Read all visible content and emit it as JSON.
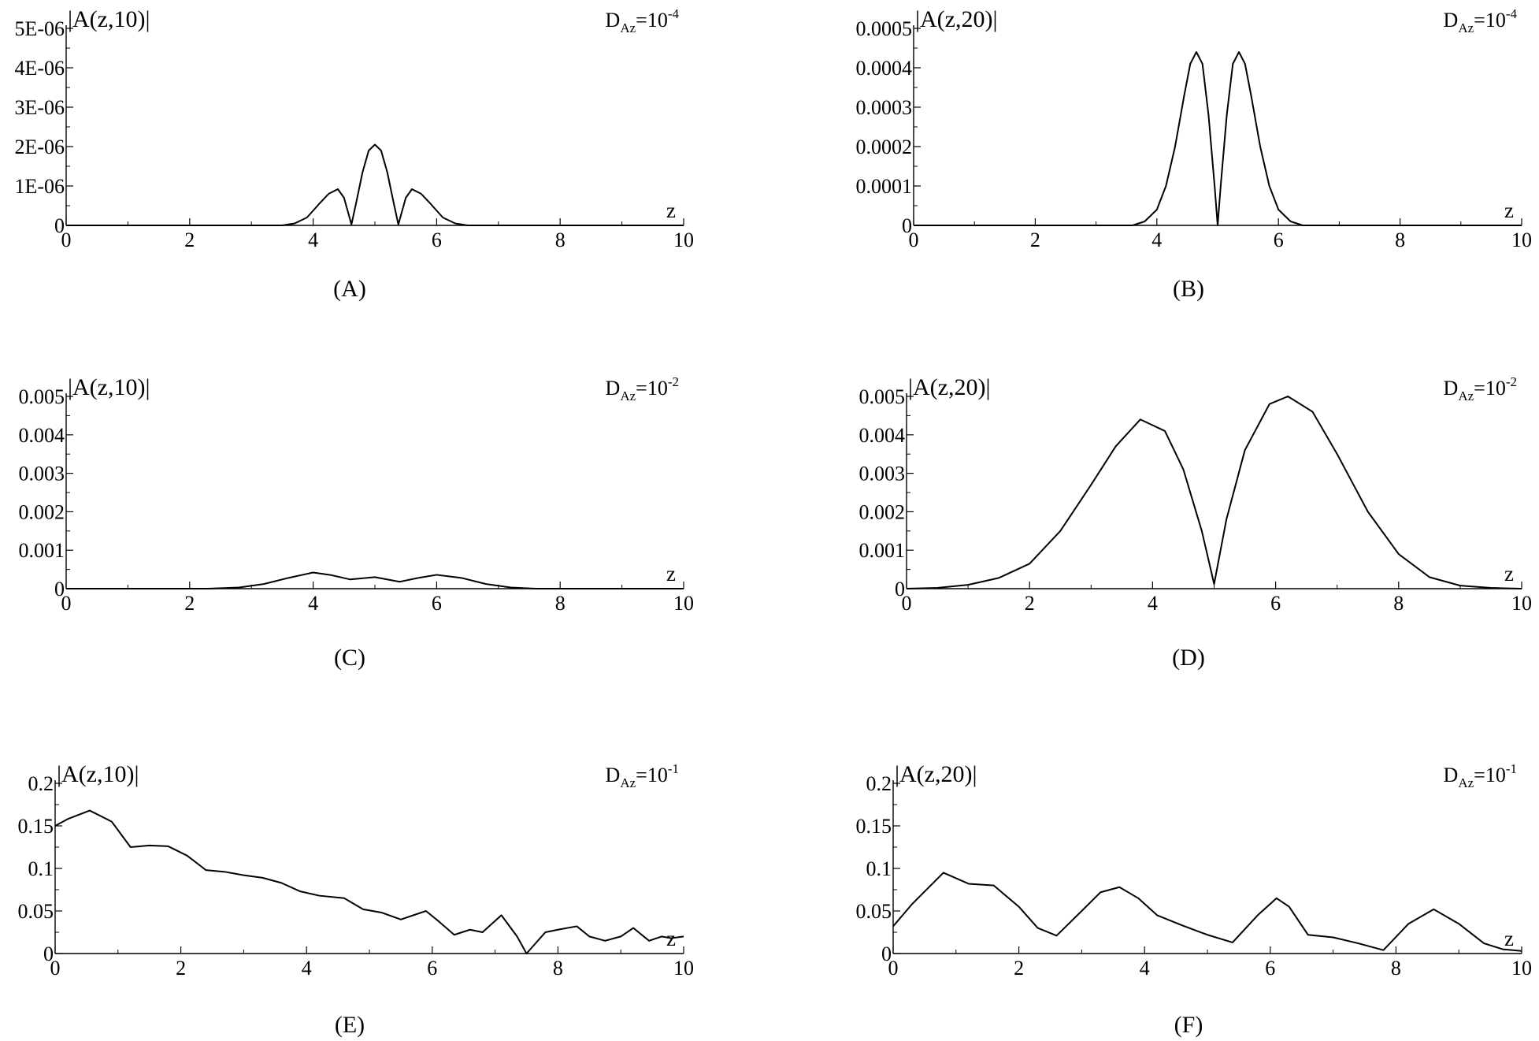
{
  "chart_data": [
    {
      "type": "line",
      "panel": "(A)",
      "ylabel": "|A(z,10)|",
      "xlabel": "z",
      "param": {
        "base": "D",
        "sub": "Az",
        "eq": "=10",
        "sup": "-4"
      },
      "xlim": [
        0,
        10
      ],
      "ylim": [
        0,
        5e-06
      ],
      "xticks": [
        "0",
        "2",
        "4",
        "6",
        "8",
        "10"
      ],
      "yticks": [
        "0",
        "1E-06",
        "2E-06",
        "3E-06",
        "4E-06",
        "5E-06"
      ],
      "series": [
        {
          "x": [
            0,
            3.5,
            3.7,
            3.9,
            4.1,
            4.25,
            4.4,
            4.5,
            4.58,
            4.62,
            4.7,
            4.8,
            4.9,
            5.0,
            5.1,
            5.2,
            5.3,
            5.38,
            5.42,
            5.5,
            5.6,
            5.75,
            5.9,
            6.1,
            6.3,
            6.5,
            10
          ],
          "y": [
            0,
            0,
            5e-08,
            2e-07,
            5.5e-07,
            8e-07,
            9.2e-07,
            7e-07,
            2.5e-07,
            2e-08,
            6e-07,
            1.35e-06,
            1.9e-06,
            2.05e-06,
            1.9e-06,
            1.35e-06,
            6e-07,
            2e-08,
            2.5e-07,
            7e-07,
            9.2e-07,
            8e-07,
            5.5e-07,
            2e-07,
            5e-08,
            0,
            0
          ]
        }
      ]
    },
    {
      "type": "line",
      "panel": "(B)",
      "ylabel": "|A(z,20)|",
      "xlabel": "z",
      "param": {
        "base": "D",
        "sub": "Az",
        "eq": "=10",
        "sup": "-4"
      },
      "xlim": [
        0,
        10
      ],
      "ylim": [
        0,
        0.0005
      ],
      "xticks": [
        "0",
        "2",
        "4",
        "6",
        "8",
        "10"
      ],
      "yticks": [
        "0",
        "0.0001",
        "0.0002",
        "0.0003",
        "0.0004",
        "0.0005"
      ],
      "series": [
        {
          "x": [
            0,
            3.6,
            3.8,
            4.0,
            4.15,
            4.3,
            4.45,
            4.55,
            4.65,
            4.75,
            4.85,
            4.95,
            5.0,
            5.05,
            5.15,
            5.25,
            5.35,
            5.45,
            5.55,
            5.7,
            5.85,
            6.0,
            6.2,
            6.4,
            10
          ],
          "y": [
            0,
            0,
            1e-05,
            4e-05,
            0.0001,
            0.0002,
            0.00033,
            0.00041,
            0.00044,
            0.00041,
            0.00028,
            0.0001,
            0,
            0.0001,
            0.00028,
            0.00041,
            0.00044,
            0.00041,
            0.00033,
            0.0002,
            0.0001,
            4e-05,
            1e-05,
            0,
            0
          ]
        }
      ]
    },
    {
      "type": "line",
      "panel": "(C)",
      "ylabel": "|A(z,10)|",
      "xlabel": "z",
      "param": {
        "base": "D",
        "sub": "Az",
        "eq": "=10",
        "sup": "-2"
      },
      "xlim": [
        0,
        10
      ],
      "ylim": [
        0,
        0.005
      ],
      "xticks": [
        "0",
        "2",
        "4",
        "6",
        "8",
        "10"
      ],
      "yticks": [
        "0",
        "0.001",
        "0.002",
        "0.003",
        "0.004",
        "0.005"
      ],
      "series": [
        {
          "x": [
            0,
            2.3,
            2.8,
            3.2,
            3.6,
            4.0,
            4.3,
            4.6,
            5.0,
            5.4,
            5.7,
            6.0,
            6.4,
            6.8,
            7.2,
            7.6,
            10
          ],
          "y": [
            0,
            0,
            3e-05,
            0.00012,
            0.00028,
            0.00042,
            0.00035,
            0.00024,
            0.0003,
            0.00018,
            0.00028,
            0.00036,
            0.00028,
            0.00012,
            3e-05,
            0,
            0
          ]
        }
      ]
    },
    {
      "type": "line",
      "panel": "(D)",
      "ylabel": "|A(z,20)|",
      "xlabel": "z",
      "param": {
        "base": "D",
        "sub": "Az",
        "eq": "=10",
        "sup": "-2"
      },
      "xlim": [
        0,
        10
      ],
      "ylim": [
        0,
        0.005
      ],
      "xticks": [
        "0",
        "2",
        "4",
        "6",
        "8",
        "10"
      ],
      "yticks": [
        "0",
        "0.001",
        "0.002",
        "0.003",
        "0.004",
        "0.005"
      ],
      "series": [
        {
          "x": [
            0,
            0.5,
            1.0,
            1.5,
            2.0,
            2.5,
            3.0,
            3.4,
            3.8,
            4.2,
            4.5,
            4.8,
            5.0,
            5.2,
            5.5,
            5.9,
            6.2,
            6.6,
            7.0,
            7.5,
            8.0,
            8.5,
            9.0,
            9.5,
            10
          ],
          "y": [
            0,
            2e-05,
            0.0001,
            0.00028,
            0.00065,
            0.0015,
            0.0027,
            0.0037,
            0.0044,
            0.0041,
            0.0031,
            0.0015,
            0.00012,
            0.0018,
            0.0036,
            0.0048,
            0.005,
            0.0046,
            0.0035,
            0.002,
            0.0009,
            0.0003,
            8e-05,
            2e-05,
            0
          ]
        }
      ]
    },
    {
      "type": "line",
      "panel": "(E)",
      "ylabel": "|A(z,10)|",
      "xlabel": "z",
      "param": {
        "base": "D",
        "sub": "Az",
        "eq": "=10",
        "sup": "-1"
      },
      "xlim": [
        0,
        10
      ],
      "ylim": [
        0,
        0.2
      ],
      "xticks": [
        "0",
        "2",
        "4",
        "6",
        "8",
        "10"
      ],
      "yticks": [
        "0",
        "0.05",
        "0.1",
        "0.15",
        "0.2"
      ],
      "series": [
        {
          "x": [
            0,
            0.2,
            0.55,
            0.9,
            1.2,
            1.5,
            1.8,
            2.1,
            2.4,
            2.7,
            3.0,
            3.3,
            3.6,
            3.9,
            4.2,
            4.6,
            4.9,
            5.2,
            5.5,
            5.9,
            6.1,
            6.35,
            6.6,
            6.8,
            7.1,
            7.35,
            7.5,
            7.8,
            8.0,
            8.3,
            8.5,
            8.75,
            9.0,
            9.2,
            9.45,
            9.65,
            9.8,
            10
          ],
          "y": [
            0.15,
            0.158,
            0.168,
            0.155,
            0.125,
            0.127,
            0.126,
            0.115,
            0.098,
            0.096,
            0.092,
            0.089,
            0.083,
            0.073,
            0.068,
            0.065,
            0.052,
            0.048,
            0.04,
            0.05,
            0.038,
            0.022,
            0.028,
            0.025,
            0.045,
            0.02,
            0.0,
            0.025,
            0.028,
            0.032,
            0.02,
            0.015,
            0.02,
            0.03,
            0.015,
            0.02,
            0.018,
            0.02
          ]
        }
      ]
    },
    {
      "type": "line",
      "panel": "(F)",
      "ylabel": "|A(z,20)|",
      "xlabel": "z",
      "param": {
        "base": "D",
        "sub": "Az",
        "eq": "=10",
        "sup": "-1"
      },
      "xlim": [
        0,
        10
      ],
      "ylim": [
        0,
        0.2
      ],
      "xticks": [
        "0",
        "2",
        "4",
        "6",
        "8",
        "10"
      ],
      "yticks": [
        "0",
        "0.05",
        "0.1",
        "0.15",
        "0.2"
      ],
      "series": [
        {
          "x": [
            0,
            0.3,
            0.8,
            1.2,
            1.6,
            2.0,
            2.3,
            2.6,
            3.0,
            3.3,
            3.6,
            3.9,
            4.2,
            4.6,
            5.0,
            5.4,
            5.8,
            6.1,
            6.3,
            6.6,
            7.0,
            7.4,
            7.8,
            8.2,
            8.6,
            9.0,
            9.4,
            9.7,
            10
          ],
          "y": [
            0.032,
            0.058,
            0.095,
            0.082,
            0.08,
            0.055,
            0.03,
            0.021,
            0.05,
            0.072,
            0.078,
            0.065,
            0.045,
            0.033,
            0.022,
            0.013,
            0.045,
            0.065,
            0.055,
            0.022,
            0.019,
            0.012,
            0.004,
            0.035,
            0.052,
            0.035,
            0.012,
            0.005,
            0.003
          ]
        }
      ]
    }
  ]
}
